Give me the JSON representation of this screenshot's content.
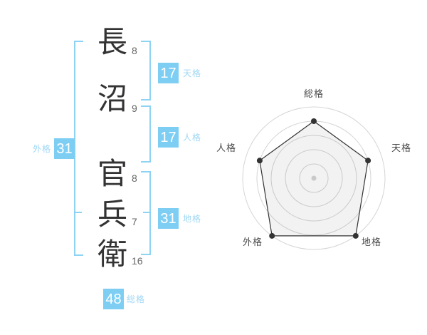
{
  "name_analysis": {
    "characters": [
      {
        "char": "長",
        "strokes": "8"
      },
      {
        "char": "沼",
        "strokes": "9"
      },
      {
        "char": "官",
        "strokes": "8"
      },
      {
        "char": "兵",
        "strokes": "7"
      },
      {
        "char": "衛",
        "strokes": "16"
      }
    ],
    "tenkaku": {
      "label": "天格",
      "value": "17"
    },
    "jinkaku": {
      "label": "人格",
      "value": "17"
    },
    "chikaku": {
      "label": "地格",
      "value": "31"
    },
    "gaikaku": {
      "label": "外格",
      "value": "31"
    },
    "soukaku": {
      "label": "総格",
      "value": "48"
    }
  },
  "colors": {
    "box_blue": "#7ecef4",
    "bracket_blue": "#8ed2f4",
    "label_blue": "#9fd7f5",
    "text_dark": "#333333",
    "stroke_number_gray": "#666666",
    "chart_label_gray": "#4a4a4a",
    "ring_gray": "#d5d5d5",
    "polygon_line": "#333333",
    "polygon_fill": "rgba(0,0,0,0.05)",
    "center_dot_gray": "#c9c9c9"
  },
  "chart_data": {
    "type": "radar",
    "categories": [
      "総格",
      "天格",
      "地格",
      "外格",
      "人格"
    ],
    "values": [
      4,
      4,
      5,
      5,
      4
    ],
    "max": 5,
    "rings": 5,
    "grid": "concentric-circles",
    "legend": "none",
    "notes": "pentagon radar, category order clockwise from top; vertices 総格=80%, 天格=80%, 地格=100%, 外格=100%, 人格=80% of outer ring"
  }
}
